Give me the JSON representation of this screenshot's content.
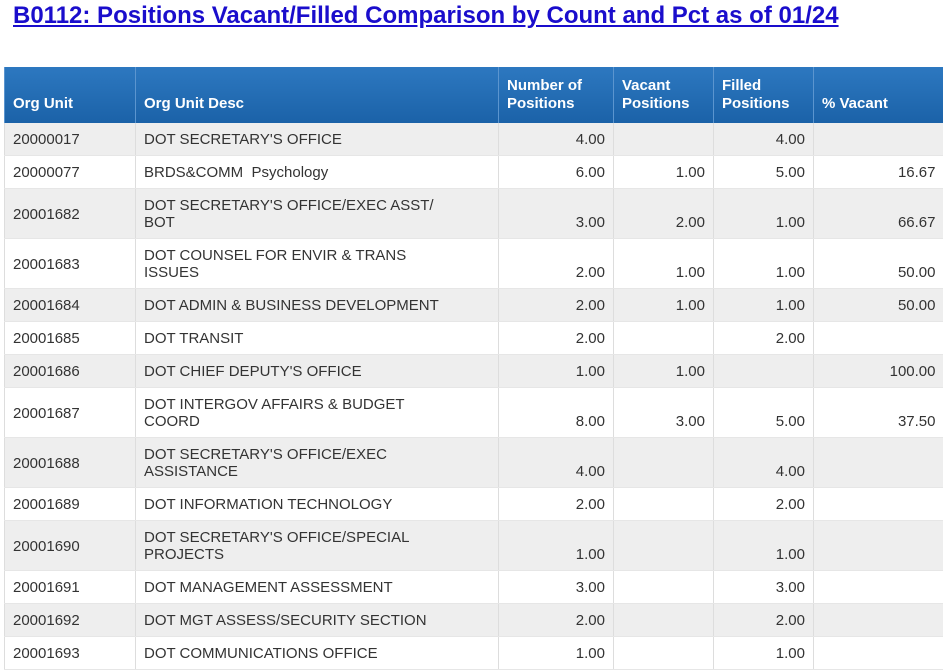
{
  "header": {
    "title": "B0112: Positions Vacant/Filled Comparison by Count and Pct as of 01/24"
  },
  "table": {
    "columns": [
      "Org Unit",
      "Org Unit Desc",
      "Number of Positions",
      "Vacant Positions",
      "Filled Positions",
      "% Vacant"
    ],
    "rows": [
      [
        "20000017",
        "DOT SECRETARY'S OFFICE",
        "4.00",
        null,
        "4.00",
        null
      ],
      [
        "20000077",
        "BRDS&COMM  Psychology",
        "6.00",
        "1.00",
        "5.00",
        "16.67"
      ],
      [
        "20001682",
        "DOT SECRETARY'S OFFICE/EXEC ASST/ BOT",
        "3.00",
        "2.00",
        "1.00",
        "66.67"
      ],
      [
        "20001683",
        "DOT COUNSEL FOR ENVIR & TRANS ISSUES",
        "2.00",
        "1.00",
        "1.00",
        "50.00"
      ],
      [
        "20001684",
        "DOT ADMIN & BUSINESS DEVELOPMENT",
        "2.00",
        "1.00",
        "1.00",
        "50.00"
      ],
      [
        "20001685",
        "DOT TRANSIT",
        "2.00",
        null,
        "2.00",
        null
      ],
      [
        "20001686",
        "DOT CHIEF DEPUTY'S OFFICE",
        "1.00",
        "1.00",
        null,
        "100.00"
      ],
      [
        "20001687",
        "DOT INTERGOV AFFAIRS & BUDGET COORD",
        "8.00",
        "3.00",
        "5.00",
        "37.50"
      ],
      [
        "20001688",
        "DOT SECRETARY'S OFFICE/EXEC ASSISTANCE",
        "4.00",
        null,
        "4.00",
        null
      ],
      [
        "20001689",
        "DOT INFORMATION TECHNOLOGY",
        "2.00",
        null,
        "2.00",
        null
      ],
      [
        "20001690",
        "DOT SECRETARY'S OFFICE/SPECIAL PROJECTS",
        "1.00",
        null,
        "1.00",
        null
      ],
      [
        "20001691",
        "DOT MANAGEMENT ASSESSMENT",
        "3.00",
        null,
        "3.00",
        null
      ],
      [
        "20001692",
        "DOT MGT ASSESS/SECURITY SECTION",
        "2.00",
        null,
        "2.00",
        null
      ],
      [
        "20001693",
        "DOT COMMUNICATIONS OFFICE",
        "1.00",
        null,
        "1.00",
        null
      ]
    ]
  }
}
